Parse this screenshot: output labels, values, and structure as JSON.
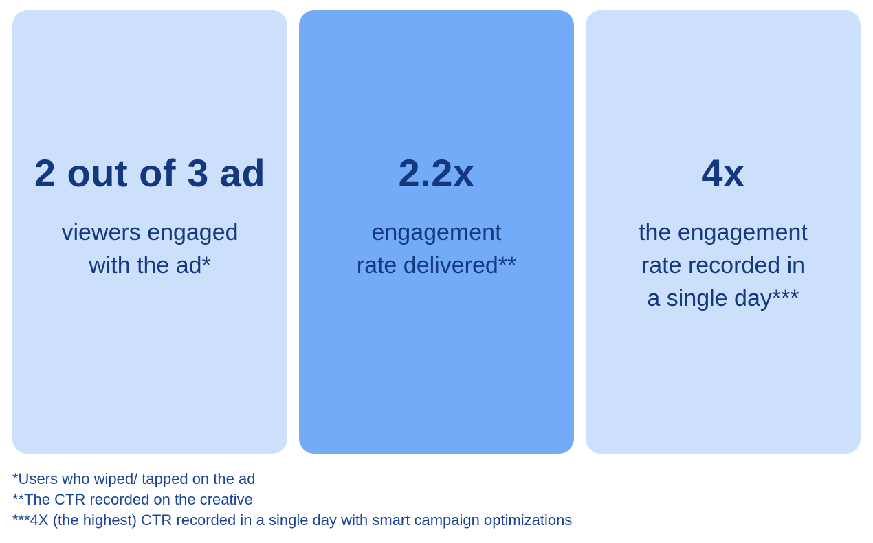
{
  "colors": {
    "background": "#ffffff",
    "card_light": "#cde0fb",
    "card_accent": "#74abf8",
    "stat_text": "#13387e",
    "footnote_text": "#1a4596"
  },
  "cards": [
    {
      "name": "ad-viewers-engaged",
      "variant": "light",
      "value": "2 out of 3 ad",
      "description_lines": [
        "viewers engaged",
        "with the ad*"
      ]
    },
    {
      "name": "engagement-rate-delivered",
      "variant": "accent",
      "value": "2.2x",
      "description_lines": [
        "engagement",
        "rate delivered**"
      ]
    },
    {
      "name": "single-day-engagement-rate",
      "variant": "light",
      "value": "4x",
      "description_lines": [
        "the engagement",
        "rate recorded in",
        "a single day***"
      ]
    }
  ],
  "footnotes": [
    "*Users who wiped/ tapped on the ad",
    "**The CTR recorded on the creative",
    "***4X (the highest) CTR recorded in a single day with smart campaign optimizations"
  ],
  "chart_data": {
    "type": "table",
    "title": "Ad engagement performance stats",
    "rows": [
      {
        "value": "2 out of 3 ad",
        "label": "viewers engaged with the ad*"
      },
      {
        "value": "2.2x",
        "label": "engagement rate delivered**"
      },
      {
        "value": "4x",
        "label": "the engagement rate recorded in a single day***"
      }
    ],
    "notes": [
      "*Users who wiped/ tapped on the ad",
      "**The CTR recorded on the creative",
      "***4X (the highest) CTR recorded in a single day with smart campaign optimizations"
    ]
  }
}
